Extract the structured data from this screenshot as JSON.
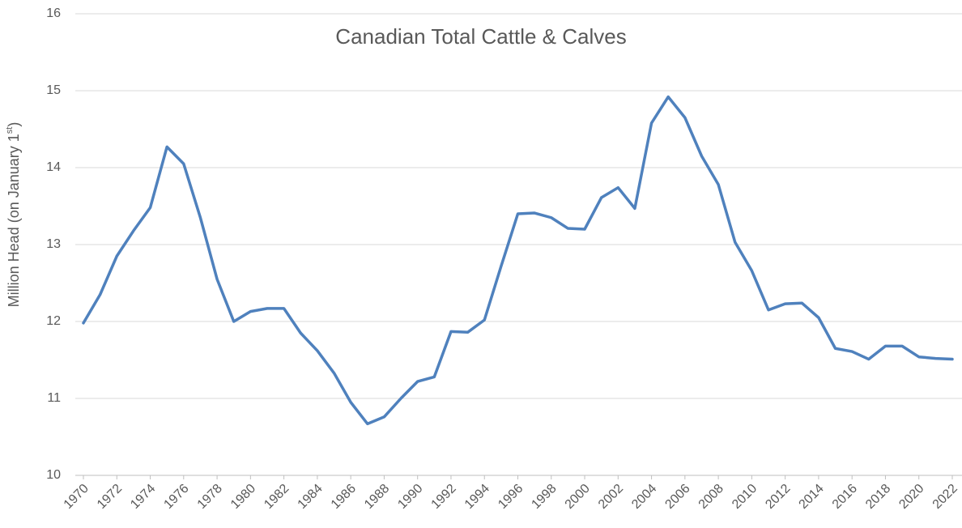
{
  "chart_data": {
    "type": "line",
    "title": "Canadian Total Cattle & Calves",
    "y_label": [
      "Million Head (on January 1",
      "st",
      ")"
    ],
    "x": [
      1970,
      1971,
      1972,
      1973,
      1974,
      1975,
      1976,
      1977,
      1978,
      1979,
      1980,
      1981,
      1982,
      1983,
      1984,
      1985,
      1986,
      1987,
      1988,
      1989,
      1990,
      1991,
      1992,
      1993,
      1994,
      1995,
      1996,
      1997,
      1998,
      1999,
      2000,
      2001,
      2002,
      2003,
      2004,
      2005,
      2006,
      2007,
      2008,
      2009,
      2010,
      2011,
      2012,
      2013,
      2014,
      2015,
      2016,
      2017,
      2018,
      2019,
      2020,
      2021,
      2022
    ],
    "series": [
      {
        "name": "Total Cattle & Calves",
        "color": "#4f81bd",
        "values": [
          11.98,
          12.35,
          12.85,
          13.18,
          13.48,
          14.27,
          14.05,
          13.35,
          12.55,
          12.0,
          12.13,
          12.17,
          12.17,
          11.85,
          11.62,
          11.33,
          10.95,
          10.67,
          10.76,
          11.0,
          11.22,
          11.28,
          11.87,
          11.86,
          12.02,
          12.72,
          13.4,
          13.41,
          13.35,
          13.21,
          13.2,
          13.61,
          13.74,
          13.47,
          14.58,
          14.92,
          14.65,
          14.15,
          13.78,
          13.03,
          12.66,
          12.15,
          12.23,
          12.24,
          12.05,
          11.65,
          11.61,
          11.51,
          11.68,
          11.68,
          11.54,
          11.52,
          11.51
        ]
      }
    ],
    "xlim": [
      1970,
      2022
    ],
    "xticks": [
      1970,
      1972,
      1974,
      1976,
      1978,
      1980,
      1982,
      1984,
      1986,
      1988,
      1990,
      1992,
      1994,
      1996,
      1998,
      2000,
      2002,
      2004,
      2006,
      2008,
      2010,
      2012,
      2014,
      2016,
      2018,
      2020,
      2022
    ],
    "ylim": [
      10,
      16
    ],
    "yticks": [
      10,
      11,
      12,
      13,
      14,
      15,
      16
    ],
    "grid": true
  }
}
